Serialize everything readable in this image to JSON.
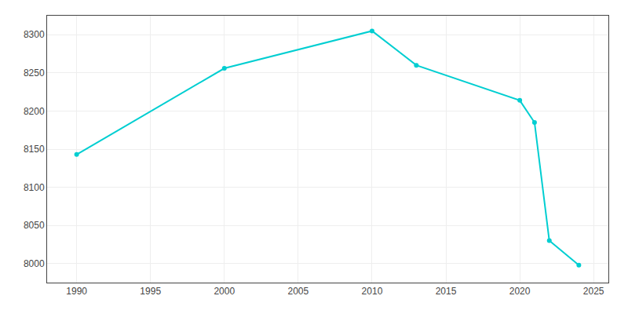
{
  "chart_data": {
    "type": "line",
    "x": [
      1990,
      2000,
      2010,
      2013,
      2020,
      2021,
      2022,
      2024
    ],
    "values": [
      8143,
      8256,
      8305,
      8260,
      8214,
      8185,
      8030,
      7998
    ],
    "color": "#00CED1",
    "marker": "circle",
    "line_style": "solid",
    "xlim": [
      1988,
      2026
    ],
    "ylim": [
      7975,
      8325
    ],
    "xticks": [
      1990,
      1995,
      2000,
      2005,
      2010,
      2015,
      2020,
      2025
    ],
    "yticks": [
      8000,
      8050,
      8100,
      8150,
      8200,
      8250,
      8300
    ],
    "grid": true
  }
}
